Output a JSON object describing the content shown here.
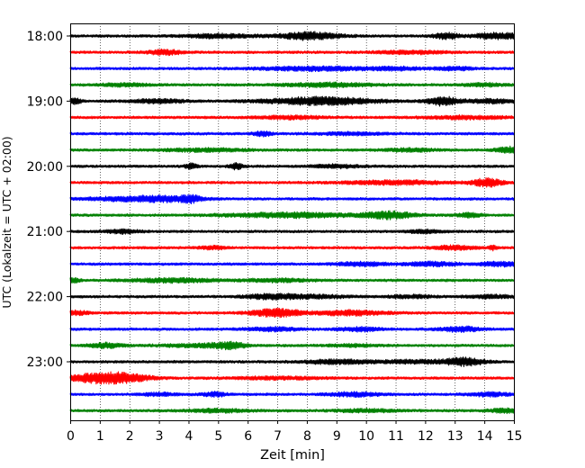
{
  "chart_data": {
    "type": "line",
    "title": "",
    "xlabel": "Zeit  [min]",
    "ylabel": "UTC (Lokalzeit = UTC + 02:00)",
    "xlim": [
      0,
      15
    ],
    "x_ticks": [
      "0",
      "1",
      "2",
      "3",
      "4",
      "5",
      "6",
      "7",
      "8",
      "9",
      "10",
      "11",
      "12",
      "13",
      "14",
      "15"
    ],
    "y_ticks": [
      "18:00",
      "19:00",
      "20:00",
      "21:00",
      "22:00",
      "23:00"
    ],
    "grid": "vertical dotted at each minute",
    "trace_interval_minutes": 15,
    "trace_colors": [
      "#000000",
      "#ff0000",
      "#0000ff",
      "#008000"
    ],
    "series": [
      {
        "start": "17:45",
        "color": "#000000",
        "bursts": [
          [
            5,
            0.8,
            2
          ],
          [
            8.1,
            0.7,
            4
          ],
          [
            12.7,
            0.3,
            3
          ],
          [
            14.5,
            0.6,
            3
          ]
        ]
      },
      {
        "start": "18:00",
        "color": "#ff0000",
        "bursts": [
          [
            3.2,
            0.4,
            2.5
          ],
          [
            11.5,
            0.8,
            1.5
          ]
        ]
      },
      {
        "start": "18:15",
        "color": "#0000ff",
        "bursts": [
          [
            8.3,
            1.3,
            2
          ],
          [
            11,
            0.6,
            1.5
          ],
          [
            13,
            0.5,
            1.5
          ]
        ]
      },
      {
        "start": "18:30",
        "color": "#008000",
        "bursts": [
          [
            1.8,
            0.6,
            1.5
          ],
          [
            8.7,
            1.0,
            2
          ],
          [
            14,
            0.5,
            1.5
          ]
        ]
      },
      {
        "start": "18:45",
        "color": "#000000",
        "bursts": [
          [
            0.15,
            0.15,
            3
          ],
          [
            3,
            0.6,
            2
          ],
          [
            8.5,
            1.3,
            4
          ],
          [
            12.6,
            0.35,
            4.5
          ],
          [
            14.2,
            0.6,
            2
          ]
        ]
      },
      {
        "start": "19:00",
        "color": "#ff0000",
        "bursts": [
          [
            7.5,
            0.8,
            1.5
          ],
          [
            13.5,
            1.0,
            1.5
          ]
        ]
      },
      {
        "start": "19:15",
        "color": "#0000ff",
        "bursts": [
          [
            6.5,
            0.2,
            2.5
          ],
          [
            9.5,
            0.8,
            1.2
          ]
        ]
      },
      {
        "start": "19:30",
        "color": "#008000",
        "bursts": [
          [
            4.5,
            1.0,
            1.5
          ],
          [
            11.5,
            0.6,
            1.5
          ],
          [
            14.8,
            0.3,
            3
          ]
        ]
      },
      {
        "start": "19:45",
        "color": "#000000",
        "bursts": [
          [
            4.1,
            0.15,
            2.5
          ],
          [
            5.6,
            0.15,
            3
          ],
          [
            9,
            0.6,
            1.5
          ]
        ]
      },
      {
        "start": "20:00",
        "color": "#ff0000",
        "bursts": [
          [
            11,
            1.2,
            2
          ],
          [
            14.1,
            0.35,
            4
          ]
        ]
      },
      {
        "start": "20:15",
        "color": "#0000ff",
        "bursts": [
          [
            3.2,
            0.8,
            3
          ],
          [
            4.1,
            0.2,
            2.5
          ],
          [
            1.5,
            0.8,
            1.5
          ]
        ]
      },
      {
        "start": "20:30",
        "color": "#008000",
        "bursts": [
          [
            7.5,
            1.5,
            2.5
          ],
          [
            10.8,
            0.6,
            3.5
          ],
          [
            13.5,
            0.3,
            2
          ]
        ]
      },
      {
        "start": "20:45",
        "color": "#000000",
        "bursts": [
          [
            1.8,
            0.4,
            2
          ],
          [
            12,
            0.4,
            1.5
          ]
        ]
      },
      {
        "start": "21:00",
        "color": "#ff0000",
        "bursts": [
          [
            4.8,
            0.3,
            1.5
          ],
          [
            13,
            0.5,
            2
          ],
          [
            14.3,
            0.1,
            2
          ]
        ]
      },
      {
        "start": "21:15",
        "color": "#0000ff",
        "bursts": [
          [
            9.8,
            0.6,
            2
          ],
          [
            12.2,
            0.6,
            2
          ],
          [
            14.5,
            0.5,
            2
          ]
        ]
      },
      {
        "start": "21:30",
        "color": "#008000",
        "bursts": [
          [
            0.1,
            0.15,
            2.5
          ],
          [
            3.5,
            1.0,
            2
          ],
          [
            7,
            0.8,
            1.5
          ]
        ]
      },
      {
        "start": "21:45",
        "color": "#000000",
        "bursts": [
          [
            6.8,
            0.6,
            2.5
          ],
          [
            8.3,
            0.8,
            1.5
          ],
          [
            11.5,
            0.5,
            1.5
          ],
          [
            14.2,
            0.6,
            1.5
          ]
        ]
      },
      {
        "start": "22:00",
        "color": "#ff0000",
        "bursts": [
          [
            0.2,
            0.3,
            2
          ],
          [
            7,
            0.6,
            4
          ],
          [
            9.5,
            0.8,
            2.5
          ]
        ]
      },
      {
        "start": "22:15",
        "color": "#0000ff",
        "bursts": [
          [
            6.8,
            0.6,
            1.8
          ],
          [
            9.8,
            0.5,
            2
          ],
          [
            13.2,
            0.5,
            2.5
          ]
        ]
      },
      {
        "start": "22:30",
        "color": "#008000",
        "bursts": [
          [
            1.2,
            0.4,
            2.5
          ],
          [
            5.4,
            0.4,
            3
          ],
          [
            4.2,
            0.8,
            1.5
          ],
          [
            9.5,
            0.6,
            1.2
          ]
        ]
      },
      {
        "start": "22:45",
        "color": "#000000",
        "bursts": [
          [
            9,
            0.8,
            2
          ],
          [
            13.3,
            0.5,
            4
          ],
          [
            11.5,
            0.8,
            1.5
          ]
        ]
      },
      {
        "start": "23:00",
        "color": "#ff0000",
        "bursts": [
          [
            1.6,
            0.7,
            5.5
          ],
          [
            0.5,
            0.5,
            2.5
          ],
          [
            7,
            1.0,
            1.3
          ]
        ]
      },
      {
        "start": "23:15",
        "color": "#0000ff",
        "bursts": [
          [
            3,
            0.4,
            1.5
          ],
          [
            4.9,
            0.3,
            2
          ],
          [
            9.6,
            0.6,
            2
          ],
          [
            14.2,
            0.5,
            1.8
          ]
        ]
      },
      {
        "start": "23:30",
        "color": "#008000",
        "bursts": [
          [
            5,
            0.8,
            1.5
          ],
          [
            10,
            0.8,
            1.3
          ],
          [
            14.7,
            0.4,
            2
          ]
        ]
      }
    ]
  }
}
